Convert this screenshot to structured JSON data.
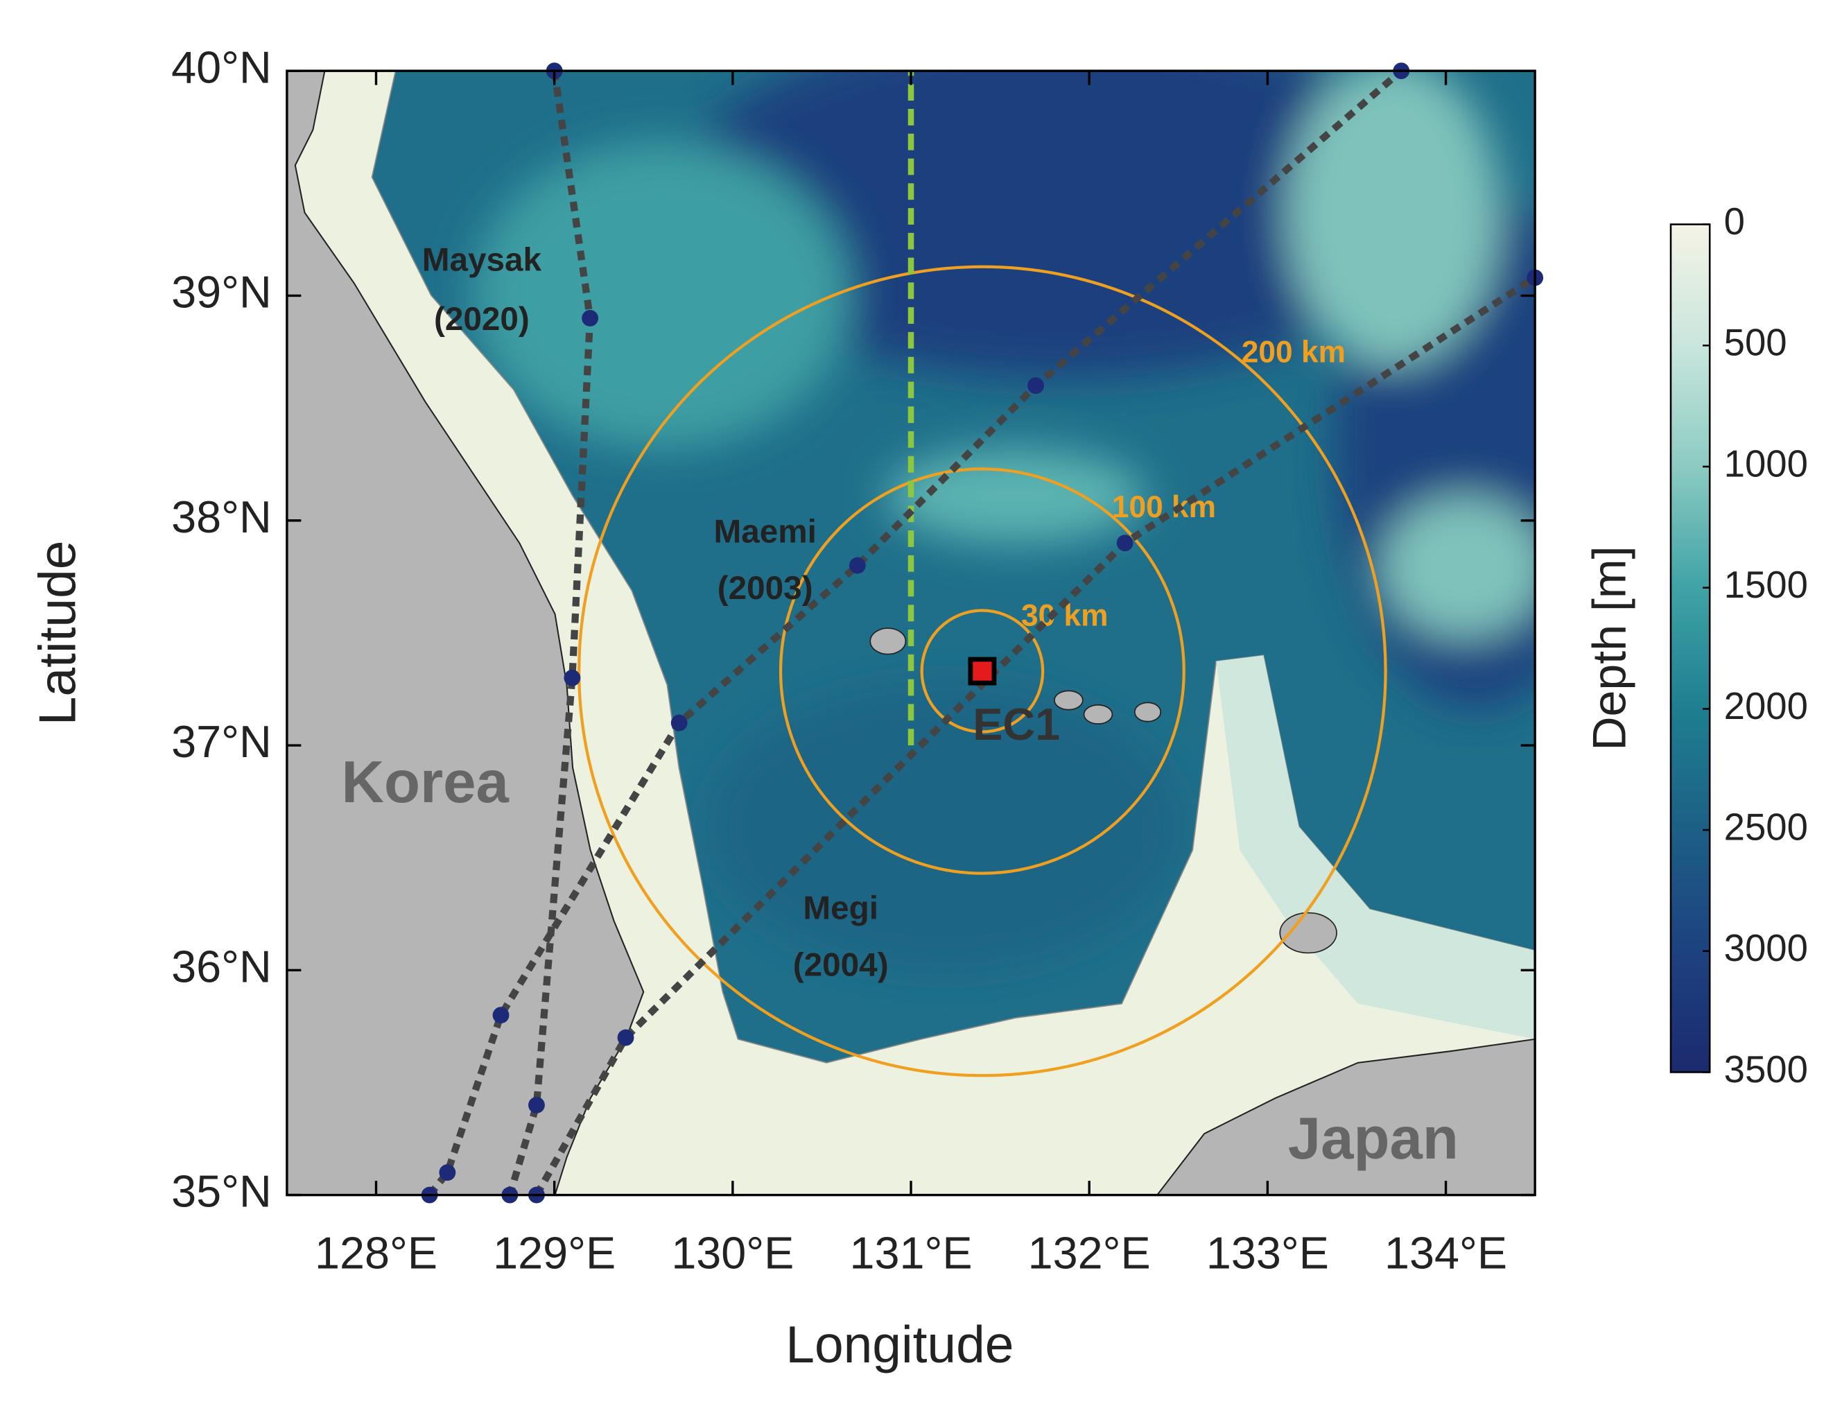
{
  "map": {
    "xlabel": "Longitude",
    "ylabel": "Latitude",
    "xlim": [
      127.5,
      134.5
    ],
    "ylim": [
      35,
      40
    ],
    "xticks": [
      {
        "value": 128,
        "label": "128°E"
      },
      {
        "value": 129,
        "label": "129°E"
      },
      {
        "value": 130,
        "label": "130°E"
      },
      {
        "value": 131,
        "label": "131°E"
      },
      {
        "value": 132,
        "label": "132°E"
      },
      {
        "value": 133,
        "label": "133°E"
      },
      {
        "value": 134,
        "label": "134°E"
      }
    ],
    "yticks": [
      {
        "value": 35,
        "label": "35°N"
      },
      {
        "value": 36,
        "label": "36°N"
      },
      {
        "value": 37,
        "label": "37°N"
      },
      {
        "value": 38,
        "label": "38°N"
      },
      {
        "value": 39,
        "label": "39°N"
      },
      {
        "value": 40,
        "label": "40°N"
      }
    ],
    "track_color": "#444444",
    "dot_color": "#1c2a78",
    "tracks": [
      {
        "name": "Maysak",
        "year": "(2020)",
        "lon": [
          129,
          129.2,
          129.1,
          128.9,
          128.75
        ],
        "lat": [
          40,
          38.9,
          37.3,
          35.4,
          35.0
        ]
      },
      {
        "name": "Maemi",
        "year": "(2003)",
        "lon": [
          128.3,
          128.4,
          128.7,
          129.7,
          130.7,
          131.7,
          133.75
        ],
        "lat": [
          35.0,
          35.1,
          35.8,
          37.1,
          37.8,
          38.6,
          40.0
        ]
      },
      {
        "name": "Megi",
        "year": "(2004)",
        "lon": [
          128.9,
          129.4,
          132.2,
          134.5
        ],
        "lat": [
          35.0,
          35.7,
          37.9,
          39.08
        ]
      }
    ],
    "station": {
      "name": "EC1",
      "lon": 131.4,
      "lat": 37.33
    },
    "ring_color": "#f0a020",
    "rings": [
      {
        "radius_km": 30,
        "label": "30 km"
      },
      {
        "radius_km": 100,
        "label": "100 km"
      },
      {
        "radius_km": 200,
        "label": "200 km"
      }
    ],
    "section": {
      "lon": 131,
      "lat": [
        37,
        40
      ],
      "color": "#8dc63f"
    },
    "regions": [
      "Korea",
      "Japan"
    ],
    "colorbar": {
      "label": "Depth [m]",
      "lim": [
        0,
        3500
      ],
      "ticks": [
        0,
        500,
        1000,
        1500,
        2000,
        2500,
        3000,
        3500
      ],
      "colors": [
        "#f5f3e6",
        "#c9e6dd",
        "#8ccbc2",
        "#3fa3a6",
        "#1e7f90",
        "#1d5f86",
        "#1d4280",
        "#1c2a6e"
      ]
    }
  }
}
